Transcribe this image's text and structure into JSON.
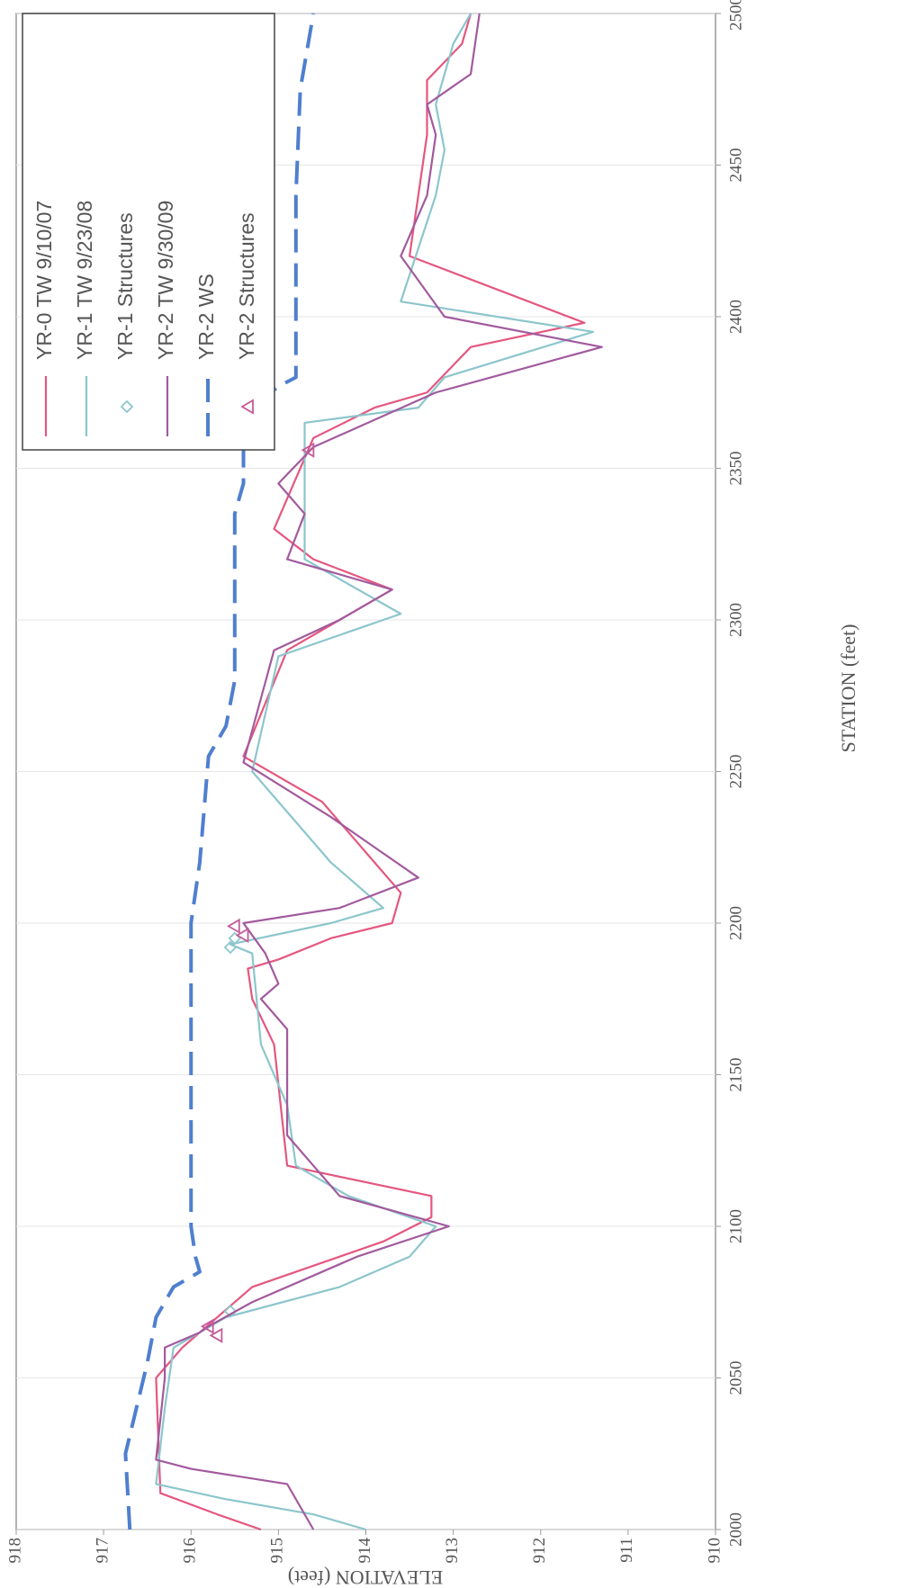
{
  "chart_data": {
    "type": "line",
    "xlabel": "STATION (feet)",
    "ylabel": "ELEVATION (feet)",
    "xlim": [
      2000,
      2500
    ],
    "xticks": [
      2000,
      2050,
      2100,
      2150,
      2200,
      2250,
      2300,
      2350,
      2400,
      2450,
      2500
    ],
    "ylim": [
      910,
      918
    ],
    "yticks": [
      910,
      911,
      912,
      913,
      914,
      915,
      916,
      917,
      918
    ],
    "grid": true,
    "legend": "upper right",
    "series": [
      {
        "name": "YR-0 TW 9/10/07",
        "color": "#e4577f",
        "style": "solid",
        "x": [
          2000,
          2005,
          2012,
          2050,
          2060,
          2080,
          2085,
          2095,
          2103,
          2110,
          2120,
          2160,
          2175,
          2185,
          2188,
          2195,
          2200,
          2210,
          2220,
          2240,
          2255,
          2290,
          2300,
          2310,
          2320,
          2330,
          2340,
          2360,
          2370,
          2375,
          2390,
          2398,
          2420,
          2440,
          2460,
          2478,
          2490,
          2500
        ],
        "values": [
          915.2,
          915.7,
          916.35,
          916.4,
          916.1,
          915.3,
          914.8,
          913.8,
          913.25,
          913.25,
          914.9,
          915.05,
          915.3,
          915.35,
          915.0,
          914.4,
          913.7,
          913.6,
          913.9,
          914.5,
          915.4,
          914.9,
          914.3,
          913.7,
          914.6,
          915.05,
          914.9,
          914.6,
          913.9,
          913.3,
          912.8,
          911.5,
          913.5,
          913.4,
          913.3,
          913.3,
          912.9,
          912.8
        ]
      },
      {
        "name": "YR-1 TW 9/23/08",
        "color": "#8cc6cc",
        "style": "solid",
        "x": [
          2000,
          2005,
          2010,
          2015,
          2040,
          2060,
          2070,
          2080,
          2090,
          2100,
          2110,
          2120,
          2140,
          2160,
          2190,
          2193,
          2200,
          2205,
          2220,
          2230,
          2250,
          2288,
          2302,
          2320,
          2345,
          2365,
          2370,
          2380,
          2395,
          2405,
          2440,
          2455,
          2470,
          2490,
          2500
        ],
        "values": [
          914.0,
          914.6,
          915.6,
          916.4,
          916.3,
          916.2,
          915.6,
          914.3,
          913.5,
          913.2,
          914.2,
          914.8,
          914.9,
          915.2,
          915.3,
          915.55,
          914.4,
          913.8,
          914.4,
          914.7,
          915.3,
          915.0,
          913.6,
          914.7,
          914.7,
          914.7,
          913.4,
          913.1,
          911.4,
          913.6,
          913.2,
          913.1,
          913.2,
          913.0,
          912.8
        ]
      },
      {
        "name": "YR-1 Structures",
        "color": "#8cc6cc",
        "marker": "diamond",
        "x": [
          2072,
          2192,
          2195
        ],
        "values": [
          915.55,
          915.55,
          915.5
        ]
      },
      {
        "name": "YR-2 TW 9/30/09",
        "color": "#a25a9e",
        "style": "solid",
        "x": [
          2000,
          2015,
          2020,
          2023,
          2050,
          2060,
          2065,
          2067,
          2075,
          2090,
          2100,
          2110,
          2130,
          2165,
          2175,
          2180,
          2190,
          2200,
          2205,
          2215,
          2225,
          2235,
          2253,
          2290,
          2300,
          2310,
          2320,
          2335,
          2345,
          2357,
          2375,
          2390,
          2400,
          2420,
          2440,
          2460,
          2470,
          2480,
          2500
        ],
        "values": [
          914.6,
          914.9,
          916.0,
          916.4,
          916.3,
          916.3,
          915.9,
          915.8,
          915.3,
          914.1,
          913.05,
          914.3,
          914.9,
          914.9,
          915.2,
          915.0,
          915.15,
          915.4,
          914.3,
          913.4,
          913.9,
          914.4,
          915.4,
          915.05,
          914.3,
          913.7,
          914.9,
          914.7,
          915.0,
          914.6,
          913.2,
          911.3,
          913.1,
          913.6,
          913.3,
          913.2,
          913.3,
          912.8,
          912.7
        ]
      },
      {
        "name": "YR-2  WS",
        "color": "#4f7fcf",
        "style": "dashed",
        "x": [
          2000,
          2025,
          2055,
          2070,
          2080,
          2085,
          2090,
          2100,
          2200,
          2220,
          2255,
          2265,
          2280,
          2335,
          2345,
          2360,
          2370,
          2377,
          2380,
          2440,
          2475,
          2500
        ],
        "values": [
          916.7,
          916.75,
          916.5,
          916.4,
          916.2,
          915.9,
          915.95,
          916.0,
          916.0,
          915.9,
          915.8,
          915.6,
          915.5,
          915.5,
          915.4,
          915.4,
          915.3,
          915.0,
          914.8,
          914.8,
          914.75,
          914.6
        ]
      },
      {
        "name": "YR-2 Structures",
        "color": "#c45a9a",
        "marker": "triangle",
        "x": [
          2064,
          2067,
          2196,
          2199,
          2356
        ],
        "values": [
          915.7,
          915.8,
          915.4,
          915.5,
          914.65
        ]
      }
    ]
  }
}
